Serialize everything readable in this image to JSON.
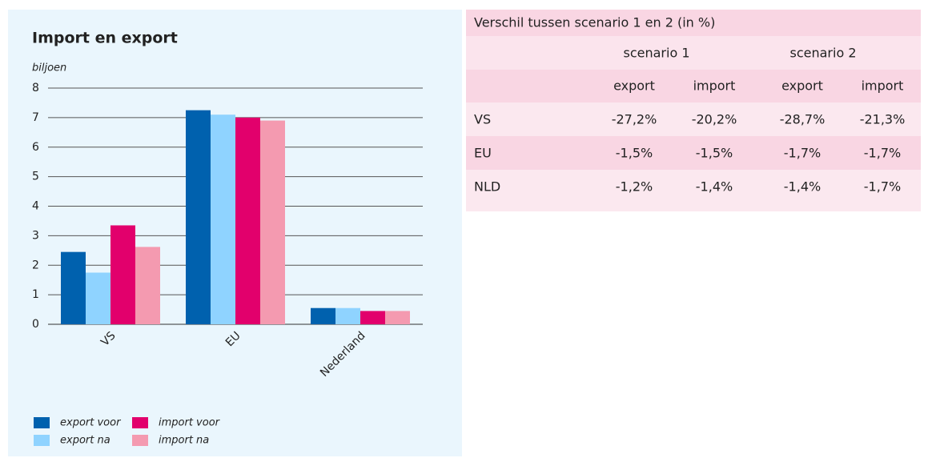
{
  "chart_data": {
    "type": "bar",
    "title": "Import en export",
    "y_label": "biljoen",
    "categories": [
      "VS",
      "EU",
      "Nederland"
    ],
    "series": [
      {
        "name": "export voor",
        "color": "#0061ae",
        "values": [
          2.45,
          7.25,
          0.55
        ]
      },
      {
        "name": "export na",
        "color": "#8fd3ff",
        "values": [
          1.75,
          7.1,
          0.55
        ]
      },
      {
        "name": "import voor",
        "color": "#e2006c",
        "values": [
          3.35,
          7.0,
          0.45
        ]
      },
      {
        "name": "import na",
        "color": "#f49ab0",
        "values": [
          2.62,
          6.9,
          0.45
        ]
      }
    ],
    "ylim": [
      0,
      8
    ],
    "yticks": [
      0,
      1,
      2,
      3,
      4,
      5,
      6,
      7,
      8
    ],
    "grid": true
  },
  "table": {
    "title": "Verschil tussen scenario 1 en 2 (in %)",
    "groups": [
      "scenario 1",
      "scenario 2"
    ],
    "columns": [
      "export",
      "import",
      "export",
      "import"
    ],
    "rows": [
      {
        "label": "VS",
        "cells": [
          "-27,2%",
          "-20,2%",
          "-28,7%",
          "-21,3%"
        ]
      },
      {
        "label": "EU",
        "cells": [
          "-1,5%",
          "-1,5%",
          "-1,7%",
          "-1,7%"
        ]
      },
      {
        "label": "NLD",
        "cells": [
          "-1,2%",
          "-1,4%",
          "-1,4%",
          "-1,7%"
        ]
      }
    ]
  }
}
